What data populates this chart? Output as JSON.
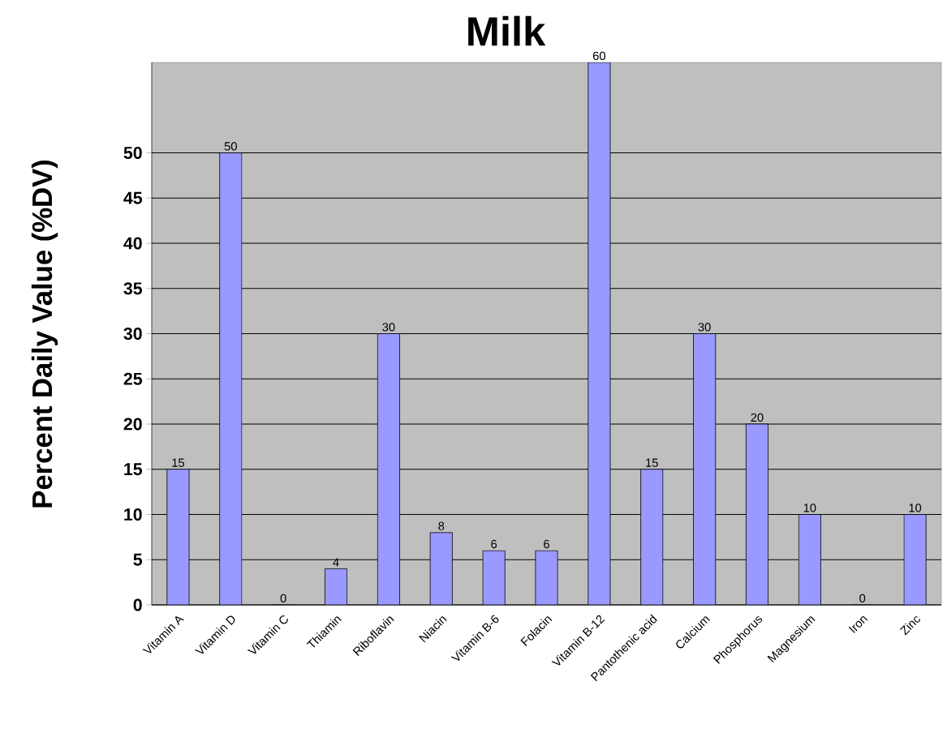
{
  "chart_data": {
    "type": "bar",
    "title": "Milk",
    "ylabel": "Percent Daily Value (%DV)",
    "categories": [
      "Vitamin A",
      "Vitamin D",
      "Vitamin C",
      "Thiamin",
      "Riboflavin",
      "Niacin",
      "Vitamin B-6",
      "Folacin",
      "Vitamin B-12",
      "Pantothenic acid",
      "Calcium",
      "Phosphorus",
      "Magnesium",
      "Iron",
      "Zinc"
    ],
    "values": [
      15,
      50,
      0,
      4,
      30,
      8,
      6,
      6,
      60,
      15,
      30,
      20,
      10,
      0,
      10
    ],
    "color": "#9999ff",
    "ylim": [
      0,
      60
    ],
    "yticks": [
      0,
      5,
      10,
      15,
      20,
      25,
      30,
      35,
      40,
      45,
      50
    ],
    "grid": "y",
    "data_labels": true
  }
}
